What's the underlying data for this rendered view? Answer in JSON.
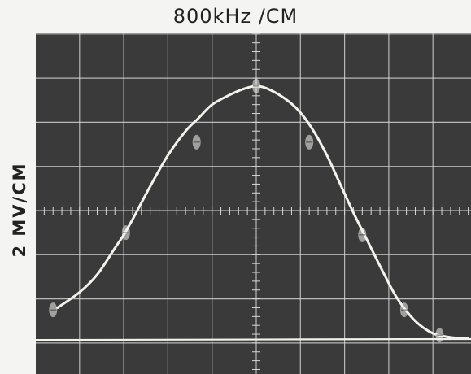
{
  "chart_data": {
    "type": "line",
    "title": "800kHz /CM",
    "ylabel": "2 MV/CM",
    "xlabel": "",
    "x_units": "div",
    "y_units": "div",
    "xlim": [
      -5,
      4.9
    ],
    "ylim": [
      -3,
      4
    ],
    "grid": true,
    "background": "#3a3a3a",
    "grid_color": "#d8d8d8",
    "trace_color": "#f2f2ee",
    "series": [
      {
        "values": [
          {
            "x": -4.5,
            "y": -2.2
          },
          {
            "x": -4.0,
            "y": -1.85
          },
          {
            "x": -3.6,
            "y": -1.45
          },
          {
            "x": -3.2,
            "y": -0.85
          },
          {
            "x": -3.0,
            "y": -0.55
          },
          {
            "x": -2.8,
            "y": -0.2
          },
          {
            "x": -2.4,
            "y": 0.55
          },
          {
            "x": -2.0,
            "y": 1.25
          },
          {
            "x": -1.6,
            "y": 1.8
          },
          {
            "x": -1.3,
            "y": 2.1
          },
          {
            "x": -1.0,
            "y": 2.4
          },
          {
            "x": -0.6,
            "y": 2.62
          },
          {
            "x": -0.3,
            "y": 2.75
          },
          {
            "x": 0.0,
            "y": 2.82
          },
          {
            "x": 0.3,
            "y": 2.74
          },
          {
            "x": 0.7,
            "y": 2.5
          },
          {
            "x": 1.0,
            "y": 2.22
          },
          {
            "x": 1.3,
            "y": 1.8
          },
          {
            "x": 1.6,
            "y": 1.25
          },
          {
            "x": 1.9,
            "y": 0.6
          },
          {
            "x": 2.2,
            "y": -0.05
          },
          {
            "x": 2.4,
            "y": -0.45
          },
          {
            "x": 2.6,
            "y": -0.85
          },
          {
            "x": 2.9,
            "y": -1.45
          },
          {
            "x": 3.2,
            "y": -2.0
          },
          {
            "x": 3.6,
            "y": -2.5
          },
          {
            "x": 4.0,
            "y": -2.78
          },
          {
            "x": 4.4,
            "y": -2.87
          },
          {
            "x": 4.8,
            "y": -2.9
          }
        ]
      },
      {
        "values": [
          {
            "x": -5.0,
            "y": -2.93
          },
          {
            "x": 4.9,
            "y": -2.91
          }
        ]
      }
    ],
    "markers": [
      {
        "x": -4.6,
        "y": -2.25
      },
      {
        "x": -2.95,
        "y": -0.5
      },
      {
        "x": -1.35,
        "y": 1.55
      },
      {
        "x": 0.0,
        "y": 2.82
      },
      {
        "x": 1.2,
        "y": 1.55
      },
      {
        "x": 2.4,
        "y": -0.55
      },
      {
        "x": 3.35,
        "y": -2.25
      },
      {
        "x": 4.15,
        "y": -2.82
      }
    ]
  }
}
